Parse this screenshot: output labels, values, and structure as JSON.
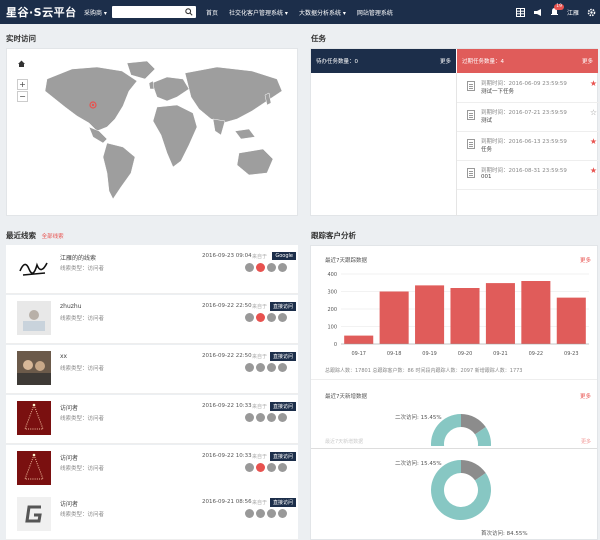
{
  "topbar": {
    "logo": "星谷·S云平台",
    "search_category": "采购商 ▾",
    "search_placeholder": "",
    "nav": [
      "首页",
      "社交化客户管理系统 ▾",
      "大数据分析系统 ▾",
      "网站管理系统"
    ],
    "notification_count": "19",
    "user": "江雁"
  },
  "realtime": {
    "title": "实时访问",
    "zoom_in": "+",
    "zoom_out": "−"
  },
  "tasks": {
    "title": "任务",
    "pending_label": "待办任务数量：0",
    "overdue_label": "过期任务数量：4",
    "more": "更多",
    "items": [
      {
        "due": "到期时间：2016-06-09 23:59:59",
        "name": "测试一下任务",
        "star_filled": true
      },
      {
        "due": "到期时间：2016-07-21 23:59:59",
        "name": "测试",
        "star_filled": false
      },
      {
        "due": "到期时间：2016-06-13 23:59:59",
        "name": "任务",
        "star_filled": true
      },
      {
        "due": "到期时间：2016-08-31 23:59:59",
        "name": "001",
        "star_filled": true
      }
    ]
  },
  "leads": {
    "title": "最近线索",
    "all_link": "全部线索",
    "items": [
      {
        "name": "江雁的的线索",
        "type": "线索类型：访问者",
        "date": "2016-09-23 09:04",
        "source": "来自于",
        "tag": "Google",
        "thumb": "signature"
      },
      {
        "name": "zhuzhu",
        "type": "线索类型：访问者",
        "date": "2016-09-22 22:50",
        "source": "来自于",
        "tag": "直接访问",
        "thumb": "photo-white"
      },
      {
        "name": "xx",
        "type": "线索类型：访问者",
        "date": "2016-09-22 22:50",
        "source": "来自于",
        "tag": "直接访问",
        "thumb": "photo-people"
      },
      {
        "name": "访问者",
        "type": "线索类型：访问者",
        "date": "2016-09-22 10:33",
        "source": "来自于",
        "tag": "直接访问",
        "thumb": "xmas-tree"
      },
      {
        "name": "访问者",
        "type": "线索类型：访问者",
        "date": "2016-09-22 10:33",
        "source": "来自于",
        "tag": "直接访问",
        "thumb": "xmas-tree"
      },
      {
        "name": "访问者",
        "type": "线索类型：访问者",
        "date": "2016-09-21 08:56",
        "source": "来自于",
        "tag": "直接访问",
        "thumb": "g-logo"
      }
    ]
  },
  "analysis": {
    "title": "跟踪客户分析",
    "visits_title": "最近7天跟踪数据",
    "more": "更多",
    "stats": "总跟踪人数：17801   总跟踪客户数：86   时间段内跟踪人数：2097   新增跟踪人数：1773",
    "new_title": "最近7天新增数据",
    "donut_label_a": "二次访问: 15.45%",
    "donut_label_b": "首次访问: 84.55%",
    "obscured_row_text": "最近7天新增数据"
  },
  "chart_data": {
    "type": "bar",
    "categories": [
      "09-17",
      "09-18",
      "09-19",
      "09-20",
      "09-21",
      "09-22",
      "09-23"
    ],
    "values": [
      48,
      300,
      335,
      320,
      348,
      360,
      265
    ],
    "ylim": [
      0,
      400
    ],
    "yticks": [
      0,
      100,
      200,
      300,
      400
    ],
    "bar_color": "#e05c5a",
    "grid": true
  },
  "donut_data": {
    "slices": [
      {
        "label": "二次访问",
        "value": 15.45,
        "color": "#8c8c8c"
      },
      {
        "label": "首次访问",
        "value": 84.55,
        "color": "#87c7c3"
      }
    ]
  }
}
